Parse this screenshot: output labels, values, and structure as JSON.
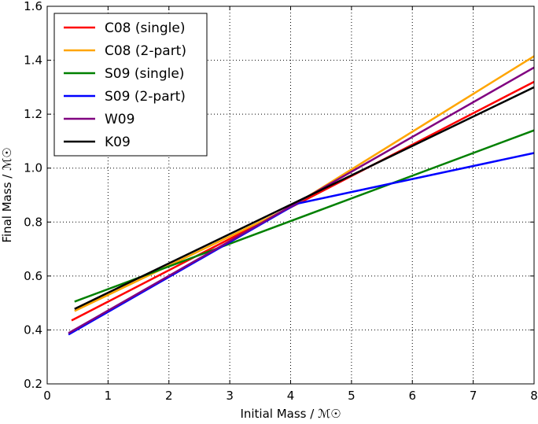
{
  "chart_data": {
    "type": "line",
    "xlabel": "Initial Mass / ℳ☉",
    "ylabel": "Final Mass / ℳ☉",
    "xlim": [
      0,
      8
    ],
    "ylim": [
      0.2,
      1.6
    ],
    "xticks": [
      "0",
      "1",
      "2",
      "3",
      "4",
      "5",
      "6",
      "7",
      "8"
    ],
    "yticks": [
      "0.2",
      "0.4",
      "0.6",
      "0.8",
      "1.0",
      "1.2",
      "1.4",
      "1.6"
    ],
    "grid": true,
    "legend_position": "top-left",
    "series": [
      {
        "name": "C08 (single)",
        "color": "#ff0000",
        "x": [
          0.4,
          8.0
        ],
        "y": [
          0.435,
          1.32
        ]
      },
      {
        "name": "C08 (2-part)",
        "color": "#ffa500",
        "x": [
          0.45,
          4.0,
          8.0
        ],
        "y": [
          0.47,
          0.855,
          1.415
        ]
      },
      {
        "name": "S09 (single)",
        "color": "#008000",
        "x": [
          0.45,
          8.0
        ],
        "y": [
          0.505,
          1.14
        ]
      },
      {
        "name": "S09 (2-part)",
        "color": "#0000ff",
        "x": [
          0.35,
          4.1,
          8.0
        ],
        "y": [
          0.383,
          0.868,
          1.056
        ]
      },
      {
        "name": "W09",
        "color": "#800080",
        "x": [
          0.35,
          8.0
        ],
        "y": [
          0.388,
          1.373
        ]
      },
      {
        "name": "K09",
        "color": "#000000",
        "x": [
          0.45,
          8.0
        ],
        "y": [
          0.478,
          1.3
        ]
      }
    ]
  }
}
